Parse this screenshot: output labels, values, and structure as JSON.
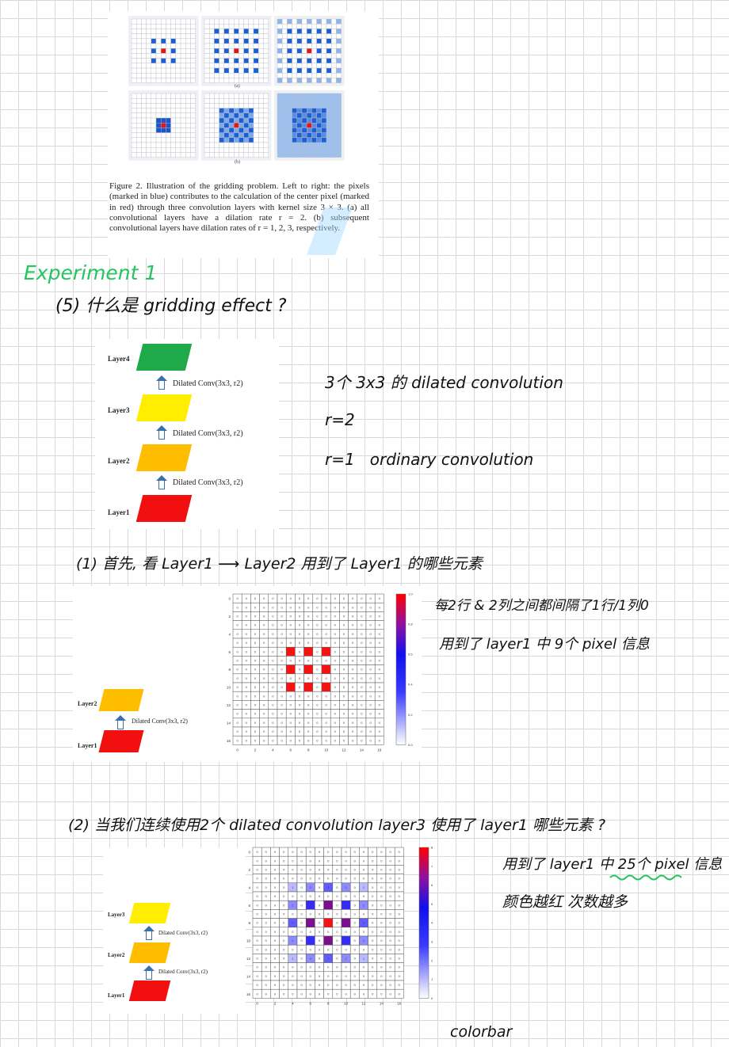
{
  "figure2": {
    "sub_a": "(a)",
    "sub_b": "(b)",
    "caption": "Figure 2. Illustration of the gridding problem. Left to right: the pixels (marked in blue) contributes to the calculation of the center pixel (marked in red) through three convolution layers with kernel size 3 × 3. (a) all convolutional layers have a dilation rate r = 2. (b) subsequent convolutional layers have dilation rates of r = 1, 2, 3, respectively."
  },
  "notes": {
    "experiment": "Experiment 1",
    "question": "(5) 什么是 gridding effect ?",
    "note1": "3个 3x3 的 dilated convolution",
    "note2": "r=2",
    "note3": "r=1   ordinary convolution",
    "section1": "(1) 首先, 看 Layer1 ⟶ Layer2 用到了 Layer1 的哪些元素",
    "obs1": "每2行 & 2列之间都间隔了1行/1列0",
    "obs2": "用到了 layer1 中 9个 pixel 信息",
    "section2": "(2) 当我们连续使用2个 dilated convolution  layer3 使用了 layer1 哪些元素 ?",
    "obs3": "用到了 layer1 中 25个 pixel 信息",
    "obs4": "颜色越红 次数越多",
    "colorbar": "colorbar"
  },
  "diagram_main": {
    "layers": [
      "Layer4",
      "Layer3",
      "Layer2",
      "Layer1"
    ],
    "arrow_label": "Dilated Conv(3x3, r2)"
  },
  "diagram_small1": {
    "layers": [
      "Layer2",
      "Layer1"
    ],
    "arrow_label": "Dilated Conv(3x3, r2)"
  },
  "diagram_small2": {
    "layers": [
      "Layer3",
      "Layer2",
      "Layer1"
    ],
    "arrow_label": "Dilated Conv(3x3, r2)"
  },
  "colors": {
    "green": "#1faa4a",
    "yellow": "#ffee00",
    "orange": "#ffbd00",
    "red": "#f20f0f",
    "blue": "#1a5fd6",
    "note_green": "#22c55e"
  },
  "heatmap1": {
    "ticks_y": [
      "0",
      "2",
      "4",
      "6",
      "8",
      "10",
      "12",
      "14",
      "16"
    ],
    "ticks_x": [
      "0",
      "2",
      "4",
      "6",
      "8",
      "10",
      "12",
      "14",
      "16"
    ],
    "colorbar_ticks": [
      "1.0",
      "0.8",
      "0.6",
      "0.4",
      "0.2",
      "0.0"
    ]
  },
  "heatmap2": {
    "ticks_y": [
      "0",
      "2",
      "4",
      "6",
      "8",
      "10",
      "12",
      "14",
      "16"
    ],
    "ticks_x": [
      "0",
      "2",
      "4",
      "6",
      "8",
      "10",
      "12",
      "14",
      "16"
    ],
    "colorbar_ticks": [
      "8",
      "7",
      "6",
      "5",
      "4",
      "3",
      "2",
      "1",
      "0"
    ]
  }
}
